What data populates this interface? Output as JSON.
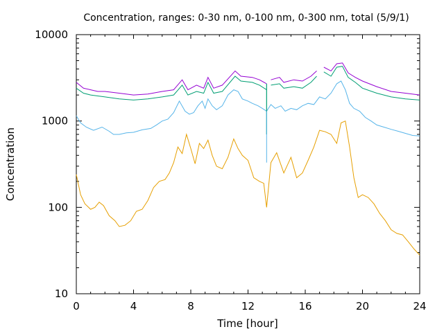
{
  "chart_data": {
    "type": "line",
    "title": "Concentration, ranges: 0-30 nm, 0-100 nm, 0-300 nm, total (5/9/1)",
    "xlabel": "Time [hour]",
    "ylabel": "Concentration",
    "xlim": [
      0,
      24
    ],
    "ylim": [
      10,
      10000
    ],
    "yscale": "log",
    "grid": false,
    "legend": "none",
    "x_ticks": [
      0,
      4,
      8,
      12,
      16,
      20,
      24
    ],
    "y_ticks": [
      10,
      100,
      1000,
      10000
    ],
    "y_tick_labels": [
      "10",
      "100",
      "1000",
      "10000"
    ],
    "series": [
      {
        "color": "#9400d3",
        "x": [
          0,
          0.5,
          1,
          1.5,
          2,
          3,
          4,
          5,
          6,
          6.8,
          7.4,
          7.8,
          8.4,
          8.9,
          9.2,
          9.6,
          10.2,
          11.1,
          11.5,
          12.3,
          12.8,
          13.3,
          13.6,
          14.2,
          14.5,
          15.2,
          15.8,
          16.4,
          16.8,
          17.3,
          17.8,
          18.2,
          18.6,
          19,
          19.5,
          20,
          21,
          22,
          23,
          24
        ],
        "y": [
          2800,
          2400,
          2300,
          2200,
          2200,
          2100,
          2000,
          2050,
          2200,
          2300,
          3000,
          2300,
          2600,
          2400,
          3200,
          2400,
          2600,
          3800,
          3300,
          3200,
          3000,
          2700,
          3000,
          3200,
          2800,
          3000,
          2900,
          3300,
          3800,
          4200,
          3800,
          4600,
          4700,
          3600,
          3200,
          2900,
          2500,
          2200,
          2100,
          2000
        ]
      },
      {
        "color": "#009e73",
        "x": [
          0,
          0.5,
          1,
          1.5,
          2,
          3,
          4,
          5,
          6,
          6.8,
          7.4,
          7.8,
          8.4,
          8.9,
          9.2,
          9.6,
          10.2,
          11.1,
          11.5,
          12.3,
          12.8,
          13.3,
          13.6,
          14.2,
          14.5,
          15.2,
          15.8,
          16.4,
          16.8,
          17.3,
          17.8,
          18.2,
          18.6,
          19,
          19.5,
          20,
          21,
          22,
          23,
          24
        ],
        "y": [
          2400,
          2100,
          2000,
          1950,
          1900,
          1800,
          1750,
          1800,
          1900,
          2000,
          2600,
          2000,
          2200,
          2100,
          2800,
          2100,
          2200,
          3300,
          2900,
          2800,
          2600,
          2300,
          2600,
          2700,
          2400,
          2500,
          2400,
          2800,
          3300,
          3700,
          3300,
          4200,
          4300,
          3200,
          2800,
          2400,
          2100,
          1900,
          1800,
          1750
        ]
      },
      {
        "color": "#56b4e9",
        "x": [
          0,
          0.3,
          0.7,
          1.2,
          1.8,
          2.3,
          2.6,
          3.0,
          3.5,
          4.0,
          4.6,
          5.2,
          5.6,
          6.0,
          6.4,
          6.8,
          7.2,
          7.6,
          7.9,
          8.2,
          8.5,
          8.8,
          9.0,
          9.2,
          9.5,
          9.8,
          10.2,
          10.6,
          11.0,
          11.3,
          11.6,
          12.0,
          12.3,
          12.7,
          13.0,
          13.3,
          13.6,
          13.9,
          14.3,
          14.6,
          15.0,
          15.4,
          15.8,
          16.2,
          16.6,
          17.0,
          17.4,
          17.8,
          18.2,
          18.5,
          18.8,
          19.1,
          19.4,
          19.8,
          20.2,
          20.6,
          21.0,
          21.5,
          22.0,
          22.5,
          23.0,
          23.5,
          24.0
        ],
        "y": [
          1150,
          950,
          850,
          780,
          850,
          760,
          700,
          700,
          730,
          740,
          790,
          820,
          900,
          1000,
          1050,
          1250,
          1700,
          1300,
          1200,
          1250,
          1500,
          1700,
          1400,
          1800,
          1500,
          1350,
          1500,
          2000,
          2300,
          2200,
          1800,
          1700,
          1600,
          1500,
          1400,
          1300,
          1550,
          1400,
          1500,
          1300,
          1400,
          1350,
          1500,
          1600,
          1550,
          1900,
          1800,
          2100,
          2700,
          2900,
          2300,
          1600,
          1400,
          1300,
          1100,
          1000,
          900,
          850,
          800,
          760,
          720,
          680,
          670
        ]
      },
      {
        "color": "#e69f00",
        "x": [
          0,
          0.3,
          0.6,
          1.0,
          1.3,
          1.6,
          1.9,
          2.3,
          2.7,
          3.0,
          3.4,
          3.8,
          4.2,
          4.6,
          5.0,
          5.4,
          5.8,
          6.2,
          6.5,
          6.8,
          7.1,
          7.4,
          7.7,
          8.0,
          8.3,
          8.6,
          8.9,
          9.2,
          9.5,
          9.8,
          10.2,
          10.6,
          11.0,
          11.3,
          11.6,
          12.0,
          12.4,
          12.8,
          13.1,
          13.3,
          13.6,
          14.0,
          14.5,
          15.0,
          15.4,
          15.8,
          16.2,
          16.6,
          17.0,
          17.4,
          17.8,
          18.2,
          18.5,
          18.8,
          19.1,
          19.4,
          19.7,
          20.0,
          20.4,
          20.8,
          21.2,
          21.6,
          22.0,
          22.4,
          22.8,
          23.2,
          23.6,
          24.0
        ],
        "y": [
          240,
          140,
          110,
          95,
          100,
          115,
          105,
          80,
          70,
          60,
          62,
          70,
          90,
          95,
          120,
          170,
          200,
          210,
          250,
          330,
          500,
          420,
          700,
          480,
          320,
          550,
          480,
          600,
          400,
          300,
          280,
          380,
          620,
          480,
          400,
          350,
          220,
          200,
          190,
          100,
          330,
          430,
          250,
          380,
          220,
          250,
          350,
          500,
          780,
          750,
          700,
          550,
          950,
          1000,
          500,
          220,
          130,
          140,
          130,
          110,
          85,
          70,
          55,
          50,
          48,
          40,
          33,
          28
        ]
      }
    ],
    "gaps": [
      {
        "series": 0,
        "x_start": 13.3,
        "x_end": 13.6
      },
      {
        "series": 1,
        "x_start": 13.3,
        "x_end": 13.6
      },
      {
        "series": 0,
        "x_start": 17.0,
        "x_end": 17.1
      },
      {
        "series": 1,
        "x_start": 17.0,
        "x_end": 17.1
      }
    ]
  }
}
